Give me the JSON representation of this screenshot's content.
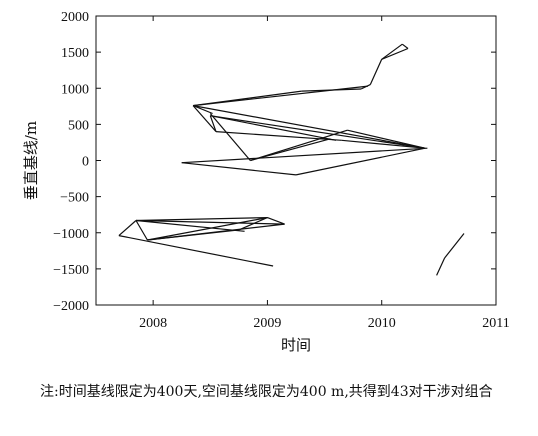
{
  "chart_data": {
    "type": "line",
    "xlabel": "时间",
    "ylabel": "垂直基线/m",
    "xlim": [
      2007.5,
      2011
    ],
    "ylim": [
      -2000,
      2000
    ],
    "x_ticks": [
      2008,
      2009,
      2010,
      2011
    ],
    "y_ticks": [
      2000,
      1500,
      1000,
      500,
      0,
      -500,
      -1000,
      -1500,
      -2000
    ],
    "x_tick_labels": [
      "2008",
      "2009",
      "2010",
      "2011"
    ],
    "y_tick_labels": [
      "2000",
      "1500",
      "1000",
      "500",
      "0",
      "−500",
      "−1000",
      "−1500",
      "−2000"
    ],
    "grid": false,
    "series": [
      {
        "segments": [
          [
            [
              2008.35,
              760
            ],
            [
              2009.3,
              960
            ]
          ],
          [
            [
              2009.3,
              960
            ],
            [
              2009.82,
              990
            ]
          ],
          [
            [
              2009.82,
              990
            ],
            [
              2009.9,
              1050
            ]
          ],
          [
            [
              2009.9,
              1050
            ],
            [
              2010.0,
              1400
            ]
          ],
          [
            [
              2010.0,
              1400
            ],
            [
              2010.18,
              1610
            ]
          ],
          [
            [
              2010.18,
              1610
            ],
            [
              2010.23,
              1550
            ]
          ],
          [
            [
              2010.23,
              1550
            ],
            [
              2010.0,
              1400
            ]
          ],
          [
            [
              2008.35,
              760
            ],
            [
              2009.88,
              1030
            ]
          ],
          [
            [
              2008.35,
              760
            ],
            [
              2008.52,
              650
            ]
          ],
          [
            [
              2008.35,
              760
            ],
            [
              2008.55,
              400
            ]
          ],
          [
            [
              2008.35,
              760
            ],
            [
              2010.38,
              170
            ]
          ],
          [
            [
              2008.5,
              620
            ],
            [
              2008.55,
              400
            ]
          ],
          [
            [
              2008.5,
              620
            ],
            [
              2009.6,
              280
            ]
          ],
          [
            [
              2008.5,
              620
            ],
            [
              2010.38,
              170
            ]
          ],
          [
            [
              2008.55,
              400
            ],
            [
              2009.65,
              280
            ]
          ],
          [
            [
              2009.65,
              280
            ],
            [
              2010.38,
              170
            ]
          ],
          [
            [
              2010.38,
              170
            ],
            [
              2009.7,
              420
            ]
          ],
          [
            [
              2009.7,
              420
            ],
            [
              2008.85,
              0
            ]
          ],
          [
            [
              2008.85,
              0
            ],
            [
              2008.5,
              650
            ]
          ],
          [
            [
              2008.85,
              0
            ],
            [
              2009.55,
              300
            ]
          ],
          [
            [
              2008.25,
              -30
            ],
            [
              2009.25,
              -200
            ]
          ],
          [
            [
              2008.25,
              -30
            ],
            [
              2010.4,
              170
            ]
          ],
          [
            [
              2009.25,
              -200
            ],
            [
              2010.38,
              170
            ]
          ],
          [
            [
              2007.7,
              -1040
            ],
            [
              2007.85,
              -830
            ]
          ],
          [
            [
              2007.7,
              -1040
            ],
            [
              2009.05,
              -1460
            ]
          ],
          [
            [
              2007.85,
              -830
            ],
            [
              2007.95,
              -1100
            ]
          ],
          [
            [
              2007.85,
              -830
            ],
            [
              2009.15,
              -880
            ]
          ],
          [
            [
              2007.85,
              -830
            ],
            [
              2008.8,
              -980
            ]
          ],
          [
            [
              2007.85,
              -830
            ],
            [
              2009.0,
              -790
            ]
          ],
          [
            [
              2007.95,
              -1100
            ],
            [
              2009.0,
              -790
            ]
          ],
          [
            [
              2007.95,
              -1100
            ],
            [
              2009.15,
              -880
            ]
          ],
          [
            [
              2007.95,
              -1100
            ],
            [
              2008.75,
              -960
            ]
          ],
          [
            [
              2008.75,
              -960
            ],
            [
              2009.0,
              -790
            ]
          ],
          [
            [
              2009.0,
              -790
            ],
            [
              2009.15,
              -880
            ]
          ],
          [
            [
              2010.48,
              -1590
            ],
            [
              2010.55,
              -1350
            ]
          ],
          [
            [
              2010.55,
              -1350
            ],
            [
              2010.72,
              -1010
            ]
          ]
        ]
      }
    ]
  },
  "caption": "注:时间基线限定为400天,空间基线限定为400 m,共得到43对干涉对组合"
}
